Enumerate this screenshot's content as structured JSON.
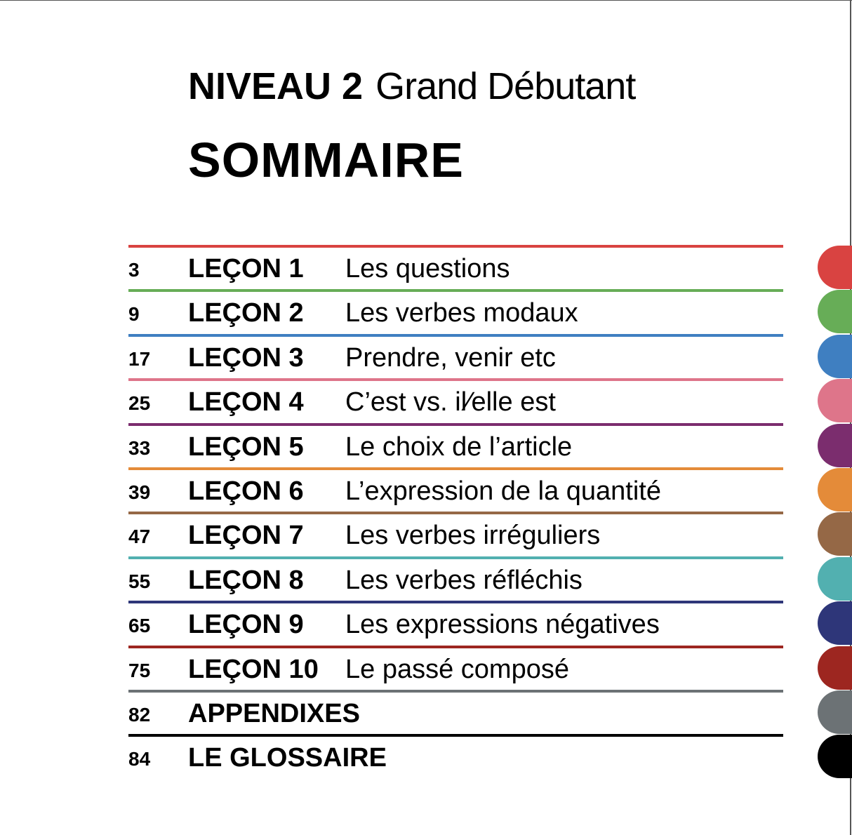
{
  "header": {
    "level": "NIVEAU 2",
    "level_name": "Grand Débutant",
    "title": "SOMMAIRE"
  },
  "toc": [
    {
      "page": "3",
      "lesson": "LEÇON 1",
      "title": "Les questions",
      "color": "#d94341"
    },
    {
      "page": "9",
      "lesson": "LEÇON 2",
      "title": "Les verbes modaux",
      "color": "#67ad57"
    },
    {
      "page": "17",
      "lesson": "LEÇON 3",
      "title": "Prendre, venir etc",
      "color": "#3f7fc1"
    },
    {
      "page": "25",
      "lesson": "LEÇON 4",
      "title": "C’est vs. il⁄elle est",
      "color": "#de758a"
    },
    {
      "page": "33",
      "lesson": "LEÇON 5",
      "title": "Le choix de l’article",
      "color": "#7b2d6e"
    },
    {
      "page": "39",
      "lesson": "LEÇON 6",
      "title": "L’expression de la quantité",
      "color": "#e48b39"
    },
    {
      "page": "47",
      "lesson": "LEÇON 7",
      "title": "Les verbes irréguliers",
      "color": "#956846"
    },
    {
      "page": "55",
      "lesson": "LEÇON 8",
      "title": "Les verbes réfléchis",
      "color": "#52b0b0"
    },
    {
      "page": "65",
      "lesson": "LEÇON 9",
      "title": "Les expressions négatives",
      "color": "#2e3679"
    },
    {
      "page": "75",
      "lesson": "LEÇON 10",
      "title": "Le passé composé",
      "color": "#9d2620"
    },
    {
      "page": "82",
      "lesson": "APPENDIXES",
      "title": "",
      "color": "#6c7275"
    },
    {
      "page": "84",
      "lesson": "LE GLOSSAIRE",
      "title": "",
      "color": "#000000"
    }
  ]
}
